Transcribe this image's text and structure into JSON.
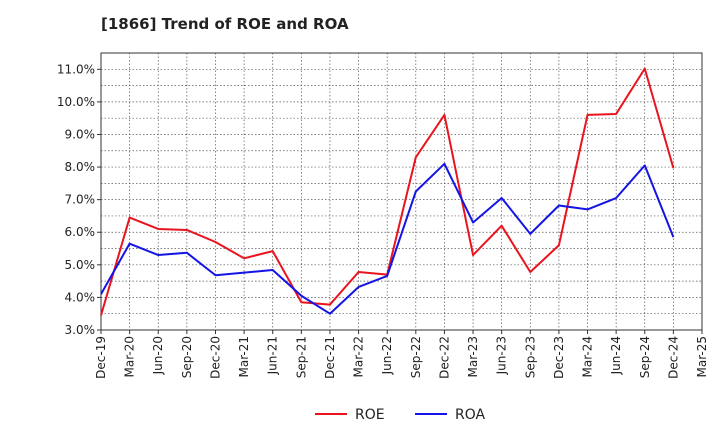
{
  "chart_data": {
    "type": "line",
    "title": "[1866]  Trend of ROE and ROA",
    "xlabel": "",
    "ylabel": "",
    "x": [
      "Dec-19",
      "Mar-20",
      "Jun-20",
      "Sep-20",
      "Dec-20",
      "Mar-21",
      "Jun-21",
      "Sep-21",
      "Dec-21",
      "Mar-22",
      "Jun-22",
      "Sep-22",
      "Dec-22",
      "Mar-23",
      "Jun-23",
      "Sep-23",
      "Dec-23",
      "Mar-24",
      "Jun-24",
      "Sep-24",
      "Dec-24",
      "Mar-25"
    ],
    "ylim": [
      3.0,
      11.5
    ],
    "yticks": [
      3.0,
      4.0,
      5.0,
      6.0,
      7.0,
      8.0,
      9.0,
      10.0,
      11.0
    ],
    "ytick_labels": [
      "3.0%",
      "4.0%",
      "5.0%",
      "6.0%",
      "7.0%",
      "8.0%",
      "9.0%",
      "10.0%",
      "11.0%"
    ],
    "grid": true,
    "legend_position": "bottom-center",
    "series": [
      {
        "name": "ROE",
        "color": "#e8141e",
        "values": [
          3.45,
          6.45,
          6.1,
          6.07,
          5.7,
          5.2,
          5.42,
          3.85,
          3.78,
          4.78,
          4.7,
          8.3,
          9.6,
          5.3,
          6.2,
          4.78,
          5.6,
          9.6,
          9.63,
          11.02,
          7.97,
          null
        ]
      },
      {
        "name": "ROA",
        "color": "#1414e6",
        "values": [
          4.1,
          5.65,
          5.3,
          5.37,
          4.68,
          4.76,
          4.84,
          4.05,
          3.5,
          4.32,
          4.66,
          7.25,
          8.1,
          6.3,
          7.05,
          5.95,
          6.82,
          6.7,
          7.05,
          8.05,
          5.85,
          null
        ]
      }
    ]
  }
}
